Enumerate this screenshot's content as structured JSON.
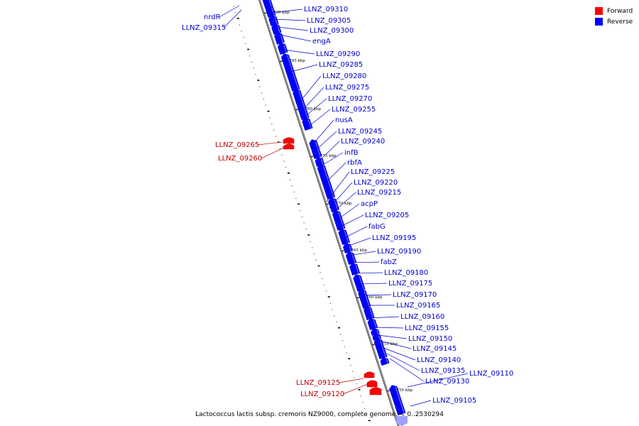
{
  "legend": {
    "forward_label": "Forward",
    "reverse_label": "Reverse",
    "forward_color": "#ff0000",
    "reverse_color": "#0000ff"
  },
  "caption": "Lactococcus lactis subsp. cremoris NZ9000, complete genome. < 0..2530294",
  "colors": {
    "forward_label_color": "#c00000",
    "reverse_label_color": "#0000cc",
    "backbone_color": "#808080"
  },
  "ticks": [
    "1790 kbp",
    "1785 kbp",
    "1780 kbp",
    "1775 kbp",
    "1770 kbp",
    "1765 kbp",
    "1760 kbp",
    "1755 kbp",
    "1750 kbp"
  ],
  "genes": [
    {
      "name": "nrdR",
      "strand": "reverse"
    },
    {
      "name": "LLNZ_09315",
      "strand": "reverse"
    },
    {
      "name": "LLNZ_09310",
      "strand": "reverse"
    },
    {
      "name": "LLNZ_09305",
      "strand": "reverse"
    },
    {
      "name": "LLNZ_09300",
      "strand": "reverse"
    },
    {
      "name": "engA",
      "strand": "reverse"
    },
    {
      "name": "LLNZ_09290",
      "strand": "reverse"
    },
    {
      "name": "LLNZ_09285",
      "strand": "reverse"
    },
    {
      "name": "LLNZ_09280",
      "strand": "reverse"
    },
    {
      "name": "LLNZ_09275",
      "strand": "reverse"
    },
    {
      "name": "LLNZ_09270",
      "strand": "reverse"
    },
    {
      "name": "LLNZ_09255",
      "strand": "reverse"
    },
    {
      "name": "nusA",
      "strand": "reverse"
    },
    {
      "name": "LLNZ_09245",
      "strand": "reverse"
    },
    {
      "name": "LLNZ_09240",
      "strand": "reverse"
    },
    {
      "name": "LLNZ_09265",
      "strand": "forward"
    },
    {
      "name": "LLNZ_09260",
      "strand": "forward"
    },
    {
      "name": "infB",
      "strand": "reverse"
    },
    {
      "name": "rbfA",
      "strand": "reverse"
    },
    {
      "name": "LLNZ_09225",
      "strand": "reverse"
    },
    {
      "name": "LLNZ_09220",
      "strand": "reverse"
    },
    {
      "name": "LLNZ_09215",
      "strand": "reverse"
    },
    {
      "name": "acpP",
      "strand": "reverse"
    },
    {
      "name": "LLNZ_09205",
      "strand": "reverse"
    },
    {
      "name": "fabG",
      "strand": "reverse"
    },
    {
      "name": "LLNZ_09195",
      "strand": "reverse"
    },
    {
      "name": "LLNZ_09190",
      "strand": "reverse"
    },
    {
      "name": "fabZ",
      "strand": "reverse"
    },
    {
      "name": "LLNZ_09180",
      "strand": "reverse"
    },
    {
      "name": "LLNZ_09175",
      "strand": "reverse"
    },
    {
      "name": "LLNZ_09170",
      "strand": "reverse"
    },
    {
      "name": "LLNZ_09165",
      "strand": "reverse"
    },
    {
      "name": "LLNZ_09160",
      "strand": "reverse"
    },
    {
      "name": "LLNZ_09155",
      "strand": "reverse"
    },
    {
      "name": "LLNZ_09150",
      "strand": "reverse"
    },
    {
      "name": "LLNZ_09145",
      "strand": "reverse"
    },
    {
      "name": "LLNZ_09140",
      "strand": "reverse"
    },
    {
      "name": "LLNZ_09135",
      "strand": "reverse"
    },
    {
      "name": "LLNZ_09130",
      "strand": "reverse"
    },
    {
      "name": "LLNZ_09110",
      "strand": "reverse"
    },
    {
      "name": "LLNZ_09125",
      "strand": "forward"
    },
    {
      "name": "LLNZ_09120",
      "strand": "forward"
    },
    {
      "name": "LLNZ_09105",
      "strand": "reverse"
    }
  ]
}
